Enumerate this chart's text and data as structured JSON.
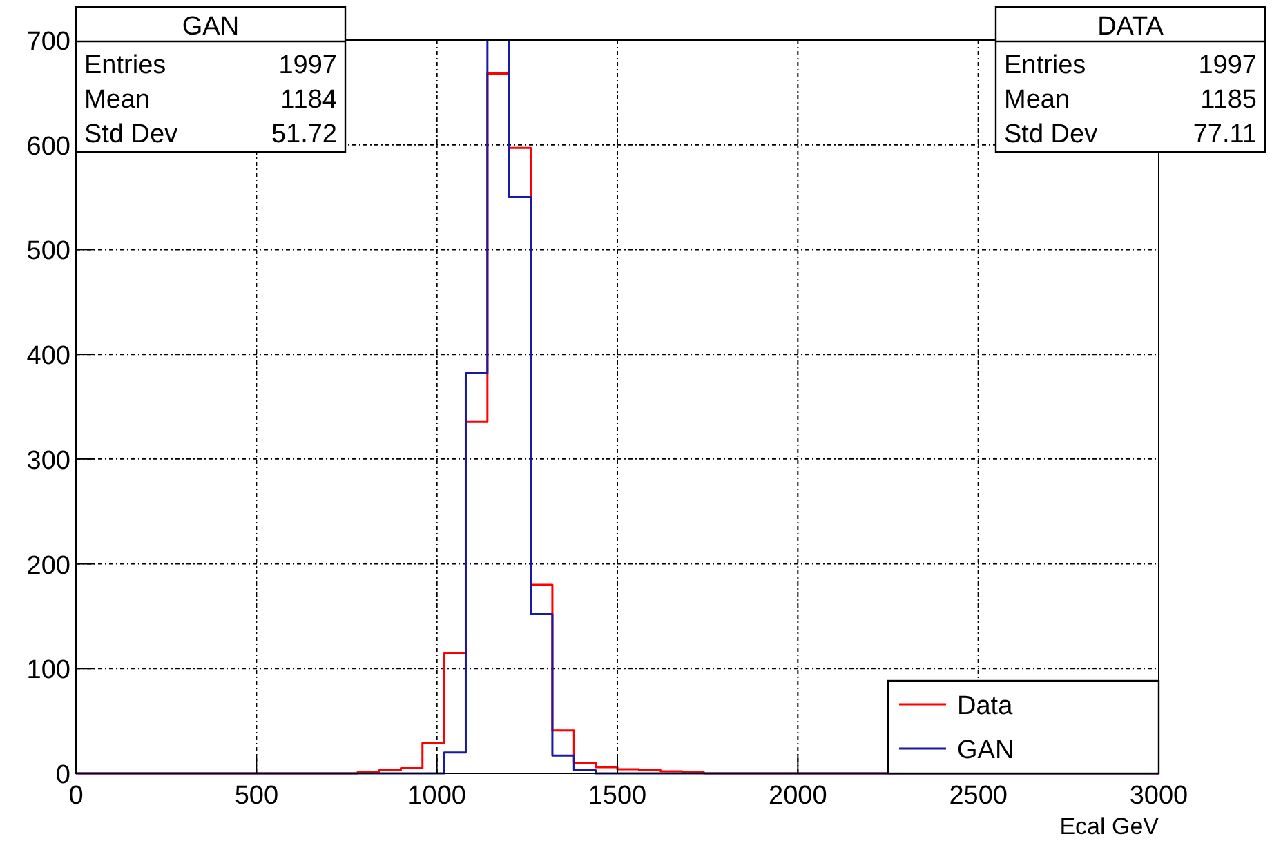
{
  "chart_data": {
    "type": "histogram",
    "xlabel": "Ecal GeV",
    "bins": [
      0,
      60,
      120,
      180,
      240,
      300,
      360,
      420,
      480,
      540,
      600,
      660,
      720,
      780,
      840,
      900,
      960,
      1020,
      1080,
      1140,
      1200,
      1260,
      1320,
      1380,
      1440,
      1500,
      1560,
      1620,
      1680,
      1740,
      1800,
      1860,
      1920,
      1980,
      2040,
      2100,
      2160,
      2220,
      2280,
      2340,
      2400,
      2460,
      2520,
      2580,
      2640,
      2700,
      2760,
      2820,
      2880,
      2940,
      3000
    ],
    "series": [
      {
        "name": "Data",
        "color": "#ff0000",
        "values": [
          0,
          0,
          0,
          0,
          0,
          0,
          0,
          0,
          0,
          0,
          0,
          0,
          0,
          1,
          3,
          5,
          29,
          115,
          336,
          668,
          597,
          180,
          41,
          10,
          6,
          4,
          3,
          2,
          1,
          0,
          0,
          0,
          0,
          0,
          0,
          0,
          0,
          0,
          0,
          0,
          0,
          0,
          0,
          0,
          0,
          0,
          0,
          0,
          0,
          0
        ]
      },
      {
        "name": "GAN",
        "color": "#1a1aa0",
        "values": [
          0,
          0,
          0,
          0,
          0,
          0,
          0,
          0,
          0,
          0,
          0,
          0,
          0,
          0,
          0,
          0,
          0,
          20,
          382,
          700,
          550,
          152,
          17,
          3,
          0,
          0,
          0,
          0,
          0,
          0,
          0,
          0,
          0,
          0,
          0,
          0,
          0,
          0,
          0,
          0,
          0,
          0,
          0,
          0,
          0,
          0,
          0,
          0,
          0,
          0
        ]
      }
    ],
    "xlim": [
      0,
      3000
    ],
    "xticks": [
      0,
      500,
      1000,
      1500,
      2000,
      2500,
      3000
    ],
    "ylim": [
      0,
      700
    ],
    "yticks": [
      0,
      100,
      200,
      300,
      400,
      500,
      600,
      700
    ],
    "grid": true,
    "legend": "bottom right",
    "annotations": [
      "GAN",
      "Entries 1997",
      "Mean 1184",
      "Std Dev 51.72",
      "DATA",
      "Entries 1997",
      "Mean 1185",
      "Std Dev 77.11"
    ]
  }
}
